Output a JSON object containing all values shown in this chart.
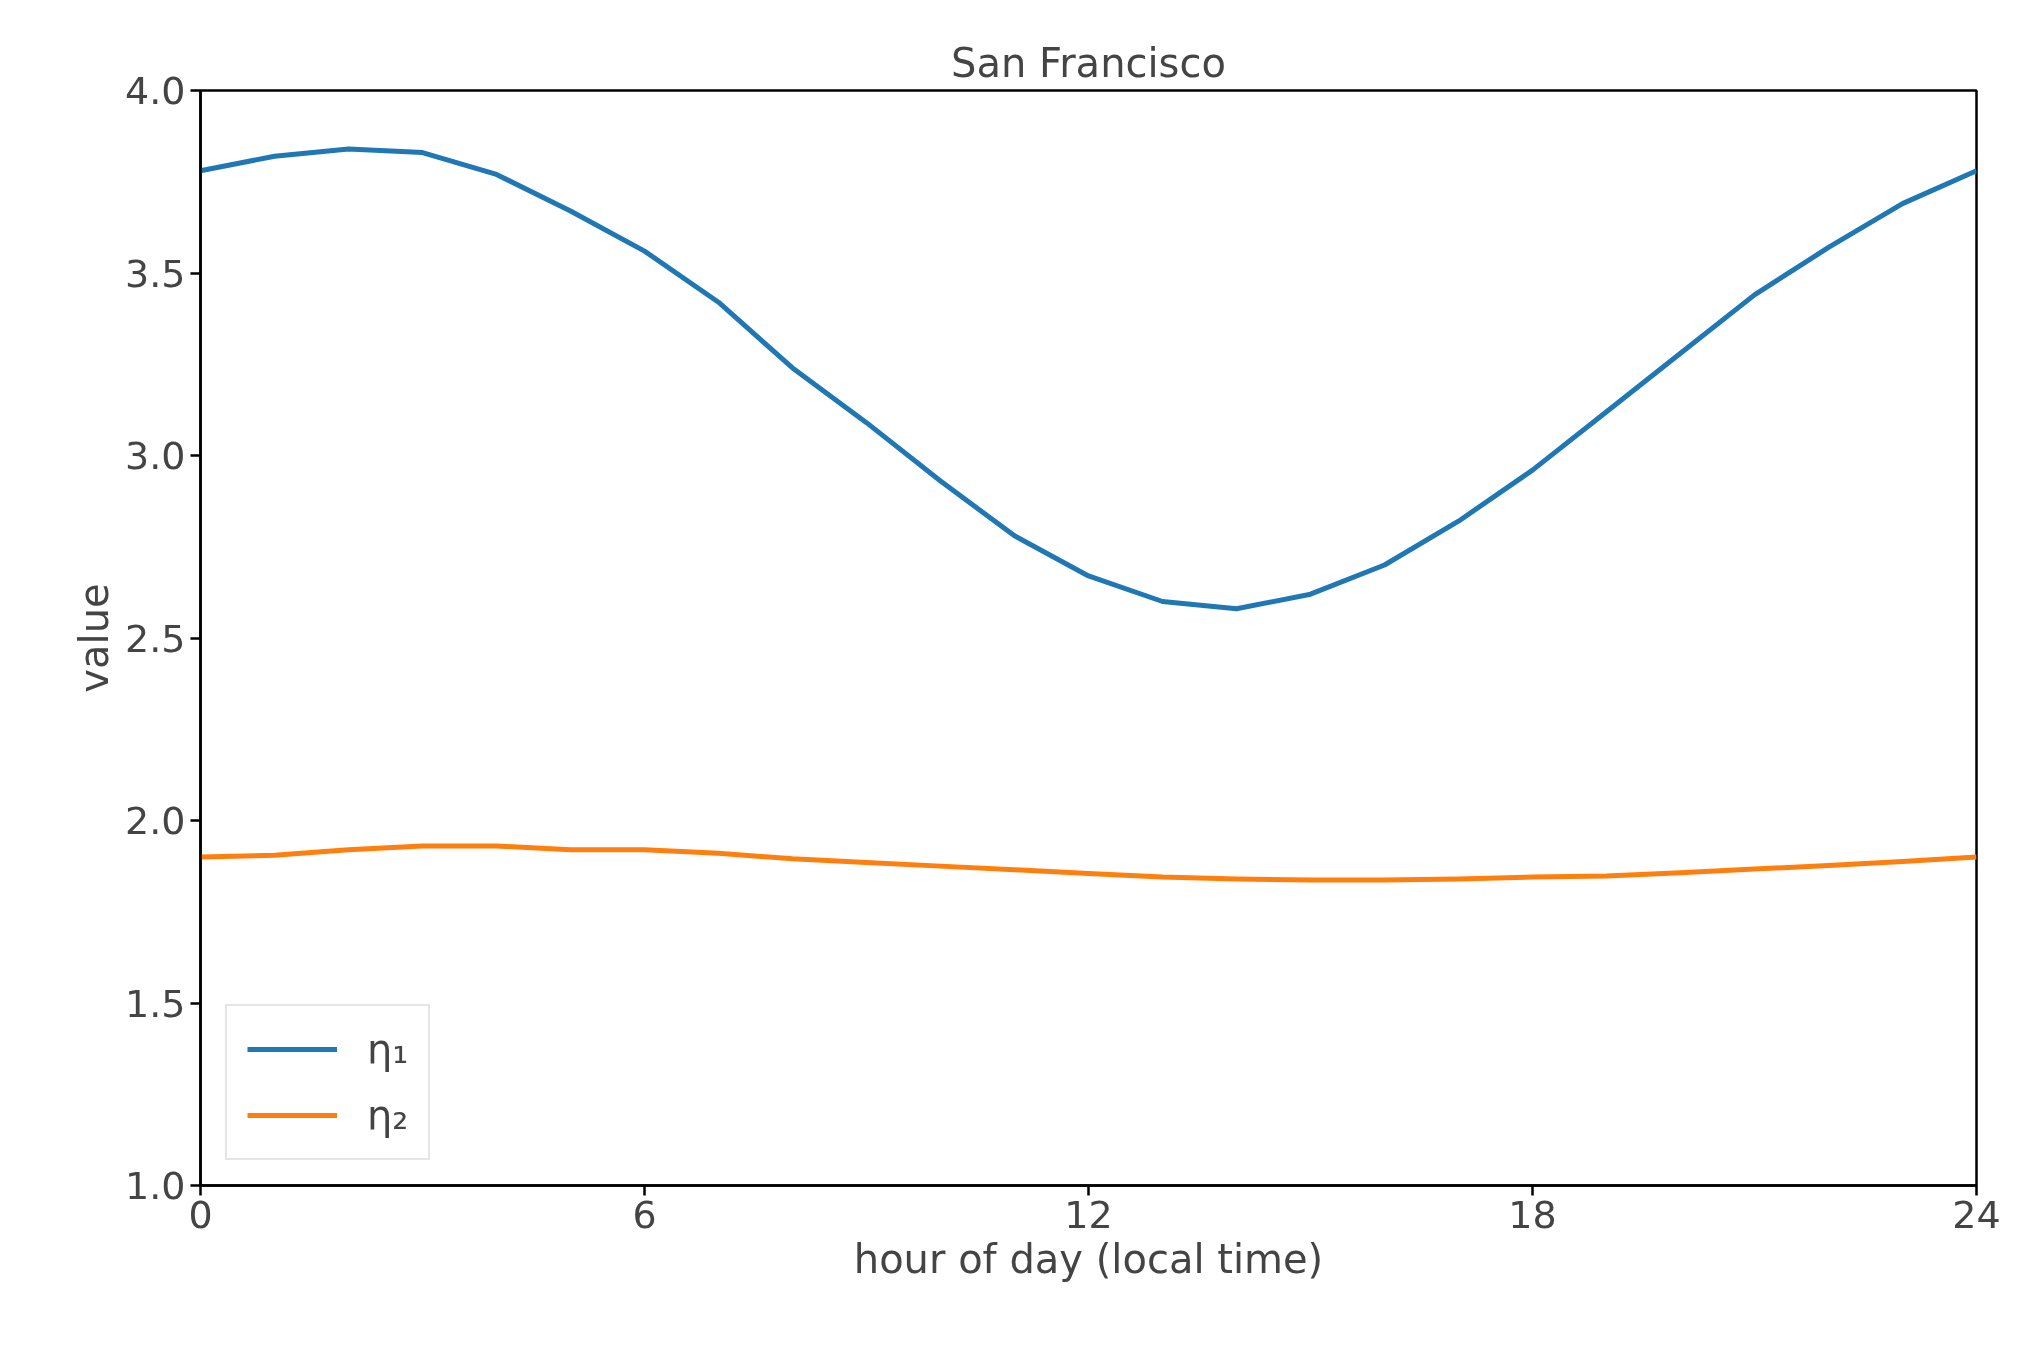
{
  "chart_data": {
    "type": "line",
    "title": "San Francisco",
    "xlabel": "hour of day (local time)",
    "ylabel": "value",
    "x": [
      0,
      1,
      2,
      3,
      4,
      5,
      6,
      7,
      8,
      9,
      10,
      11,
      12,
      13,
      14,
      15,
      16,
      17,
      18,
      19,
      20,
      21,
      22,
      23,
      24
    ],
    "series": [
      {
        "name": "η₁",
        "color": "#1f77b4",
        "values": [
          3.78,
          3.82,
          3.84,
          3.83,
          3.77,
          3.67,
          3.56,
          3.42,
          3.24,
          3.09,
          2.93,
          2.78,
          2.67,
          2.6,
          2.58,
          2.62,
          2.7,
          2.82,
          2.96,
          3.12,
          3.28,
          3.44,
          3.57,
          3.69,
          3.78
        ]
      },
      {
        "name": "η₂",
        "color": "#ff7f0e",
        "values": [
          1.9,
          1.905,
          1.92,
          1.93,
          1.93,
          1.92,
          1.92,
          1.91,
          1.895,
          1.885,
          1.875,
          1.865,
          1.855,
          1.845,
          1.84,
          1.837,
          1.837,
          1.84,
          1.845,
          1.848,
          1.857,
          1.867,
          1.877,
          1.888,
          1.9
        ]
      }
    ],
    "xlim": [
      0,
      24
    ],
    "xticks": [
      0,
      6,
      12,
      18,
      24
    ],
    "ylim": [
      1.0,
      4.0
    ],
    "yticks": [
      {
        "value": 1.0,
        "label": "1.0"
      },
      {
        "value": 1.5,
        "label": "1.5"
      },
      {
        "value": 2.0,
        "label": "2.0"
      },
      {
        "value": 2.5,
        "label": "2.5"
      },
      {
        "value": 3.0,
        "label": "3.0"
      },
      {
        "value": 3.5,
        "label": "3.5"
      },
      {
        "value": 4.0,
        "label": "4.0"
      }
    ],
    "grid": false,
    "legend": "bottom left",
    "line_style": "solid",
    "marker": "none"
  }
}
